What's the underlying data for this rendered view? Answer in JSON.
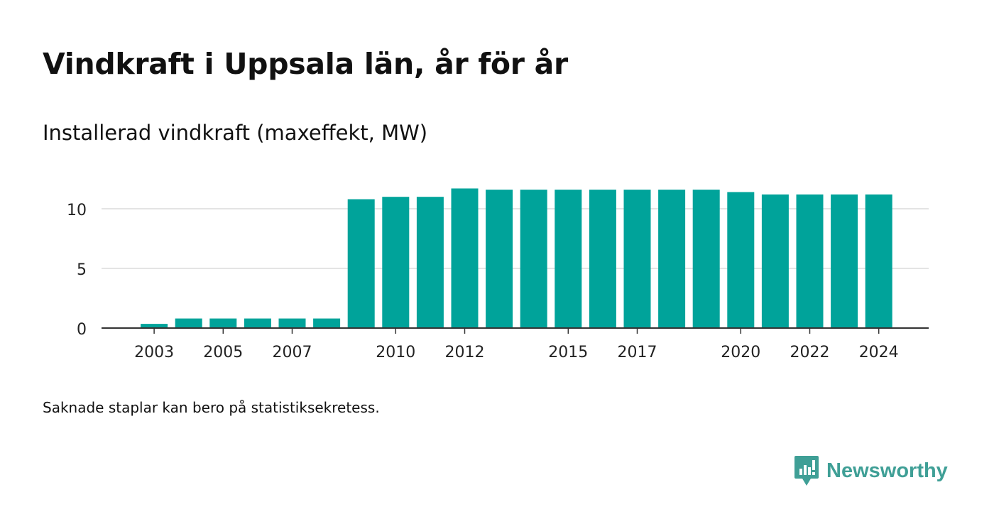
{
  "title": "Vindkraft i Uppsala län, år för år",
  "note": "Saknade staplar kan bero på statistiksekretess.",
  "brand": {
    "name": "Newsworthy",
    "icon": "bar-chart-speech-bubble-icon",
    "color": "#3f9f96"
  },
  "colors": {
    "bar": "#00a39a",
    "grid": "#dcdcdc",
    "axis": "#333333"
  },
  "chart_data": {
    "type": "bar",
    "title": "Installerad vindkraft (maxeffekt, MW)",
    "xlabel": "",
    "ylabel": "",
    "ylim": [
      0,
      12.5
    ],
    "grid": true,
    "yticks": [
      0,
      5,
      10
    ],
    "xticks": [
      "2003",
      "2005",
      "2007",
      "2010",
      "2012",
      "2015",
      "2017",
      "2020",
      "2022",
      "2024"
    ],
    "categories": [
      "2002",
      "2003",
      "2004",
      "2005",
      "2006",
      "2007",
      "2008",
      "2009",
      "2010",
      "2011",
      "2012",
      "2013",
      "2014",
      "2015",
      "2016",
      "2017",
      "2018",
      "2019",
      "2020",
      "2021",
      "2022",
      "2023",
      "2024"
    ],
    "values": [
      null,
      0.35,
      0.8,
      0.8,
      0.8,
      0.8,
      0.8,
      10.8,
      11.0,
      11.0,
      11.7,
      11.6,
      11.6,
      11.6,
      11.6,
      11.6,
      11.6,
      11.6,
      11.4,
      11.2,
      11.2,
      11.2,
      11.2
    ]
  }
}
